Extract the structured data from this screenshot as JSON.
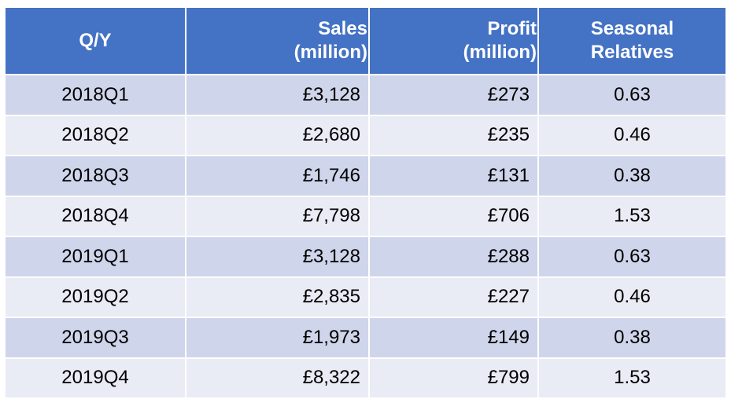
{
  "table": {
    "header": [
      "Q/Y",
      "Sales\n(million)",
      "Profit\n(million)",
      "Seasonal\nRelatives"
    ],
    "rows": [
      [
        "2018Q1",
        "£3,128",
        "£273",
        "0.63"
      ],
      [
        "2018Q2",
        "£2,680",
        "£235",
        "0.46"
      ],
      [
        "2018Q3",
        "£1,746",
        "£131",
        "0.38"
      ],
      [
        "2018Q4",
        "£7,798",
        "£706",
        "1.53"
      ],
      [
        "2019Q1",
        "£3,128",
        "£288",
        "0.63"
      ],
      [
        "2019Q2",
        "£2,835",
        "£227",
        "0.46"
      ],
      [
        "2019Q3",
        "£1,973",
        "£149",
        "0.38"
      ],
      [
        "2019Q4",
        "£8,322",
        "£799",
        "1.53"
      ]
    ]
  }
}
